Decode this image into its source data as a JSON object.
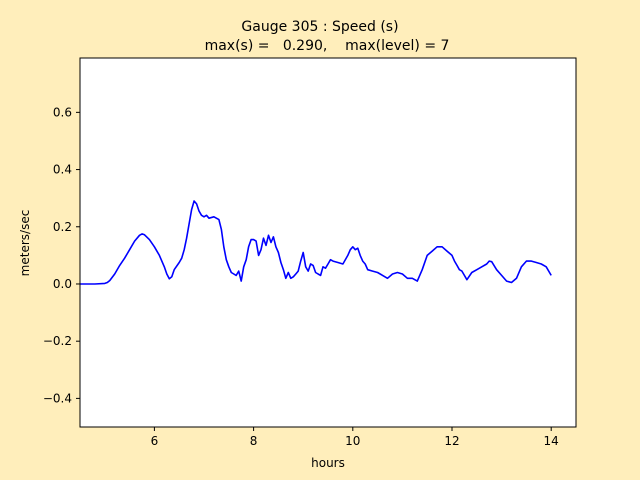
{
  "chart_data": {
    "type": "line",
    "title": "Gauge 305 : Speed (s)",
    "subtitle": "max(s) =   0.290,    max(level) = 7",
    "xlabel": "hours",
    "ylabel": "meters/sec",
    "xlim": [
      4.5,
      14.5
    ],
    "ylim": [
      -0.5,
      0.79
    ],
    "xticks": [
      6,
      8,
      10,
      12,
      14
    ],
    "xtick_labels": [
      "6",
      "8",
      "10",
      "12",
      "14"
    ],
    "yticks": [
      -0.4,
      -0.2,
      0.0,
      0.2,
      0.4,
      0.6
    ],
    "ytick_labels": [
      "−0.4",
      "−0.2",
      "0.0",
      "0.2",
      "0.4",
      "0.6"
    ],
    "grid": false,
    "series": [
      {
        "color": "#0000ff",
        "x": [
          4.5,
          4.6,
          4.8,
          5.0,
          5.05,
          5.1,
          5.2,
          5.3,
          5.4,
          5.5,
          5.6,
          5.7,
          5.75,
          5.8,
          5.9,
          6.0,
          6.1,
          6.2,
          6.25,
          6.3,
          6.35,
          6.4,
          6.5,
          6.55,
          6.6,
          6.65,
          6.7,
          6.75,
          6.8,
          6.85,
          6.9,
          6.95,
          7.0,
          7.05,
          7.1,
          7.2,
          7.3,
          7.35,
          7.4,
          7.45,
          7.5,
          7.55,
          7.6,
          7.65,
          7.7,
          7.75,
          7.8,
          7.85,
          7.9,
          7.95,
          8.0,
          8.05,
          8.1,
          8.15,
          8.2,
          8.25,
          8.3,
          8.35,
          8.4,
          8.45,
          8.5,
          8.55,
          8.6,
          8.65,
          8.7,
          8.75,
          8.8,
          8.85,
          8.9,
          8.95,
          9.0,
          9.05,
          9.1,
          9.15,
          9.2,
          9.25,
          9.3,
          9.35,
          9.4,
          9.45,
          9.5,
          9.55,
          9.6,
          9.7,
          9.8,
          9.9,
          9.95,
          10.0,
          10.05,
          10.1,
          10.15,
          10.2,
          10.25,
          10.3,
          10.4,
          10.5,
          10.6,
          10.7,
          10.8,
          10.9,
          11.0,
          11.1,
          11.2,
          11.3,
          11.4,
          11.5,
          11.6,
          11.7,
          11.8,
          11.9,
          12.0,
          12.05,
          12.1,
          12.15,
          12.2,
          12.25,
          12.3,
          12.4,
          12.5,
          12.6,
          12.7,
          12.75,
          12.8,
          12.9,
          13.0,
          13.1,
          13.2,
          13.3,
          13.4,
          13.5,
          13.6,
          13.7,
          13.8,
          13.9,
          14.0
        ],
        "y": [
          0.0,
          0.0,
          0.0,
          0.002,
          0.005,
          0.012,
          0.035,
          0.065,
          0.09,
          0.12,
          0.15,
          0.17,
          0.175,
          0.172,
          0.155,
          0.13,
          0.1,
          0.06,
          0.035,
          0.018,
          0.025,
          0.05,
          0.075,
          0.09,
          0.12,
          0.16,
          0.21,
          0.26,
          0.29,
          0.28,
          0.255,
          0.24,
          0.235,
          0.24,
          0.23,
          0.235,
          0.225,
          0.19,
          0.13,
          0.085,
          0.06,
          0.04,
          0.035,
          0.03,
          0.045,
          0.01,
          0.06,
          0.085,
          0.13,
          0.155,
          0.155,
          0.15,
          0.1,
          0.12,
          0.16,
          0.135,
          0.17,
          0.145,
          0.165,
          0.13,
          0.11,
          0.075,
          0.05,
          0.02,
          0.04,
          0.02,
          0.025,
          0.035,
          0.045,
          0.08,
          0.11,
          0.06,
          0.045,
          0.07,
          0.065,
          0.04,
          0.035,
          0.03,
          0.06,
          0.055,
          0.07,
          0.085,
          0.08,
          0.075,
          0.07,
          0.1,
          0.12,
          0.13,
          0.12,
          0.125,
          0.1,
          0.08,
          0.07,
          0.05,
          0.045,
          0.04,
          0.03,
          0.02,
          0.035,
          0.04,
          0.035,
          0.02,
          0.02,
          0.01,
          0.05,
          0.1,
          0.115,
          0.13,
          0.13,
          0.115,
          0.1,
          0.08,
          0.065,
          0.05,
          0.045,
          0.03,
          0.015,
          0.04,
          0.05,
          0.06,
          0.07,
          0.08,
          0.078,
          0.05,
          0.03,
          0.01,
          0.005,
          0.02,
          0.06,
          0.08,
          0.08,
          0.075,
          0.07,
          0.06,
          0.03
        ]
      }
    ]
  }
}
